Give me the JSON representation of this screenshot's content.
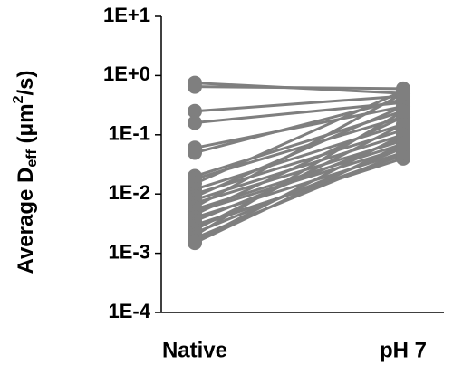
{
  "chart_data": {
    "type": "paired-line",
    "y_label_parts": [
      "Average D",
      "eff",
      " (μm",
      "2",
      "/s)"
    ],
    "categories": [
      "Native",
      "pH 7"
    ],
    "log_y": true,
    "color": "#7f7f7f",
    "ylim": [
      0.0001,
      10
    ],
    "yticks": [
      {
        "value": 0.0001,
        "label": "1E-4"
      },
      {
        "value": 0.001,
        "label": "1E-3"
      },
      {
        "value": 0.01,
        "label": "1E-2"
      },
      {
        "value": 0.1,
        "label": "1E-1"
      },
      {
        "value": 1,
        "label": "1E+0"
      },
      {
        "value": 10,
        "label": "1E+1"
      }
    ],
    "series": [
      {
        "values": [
          0.75,
          0.5
        ]
      },
      {
        "values": [
          0.65,
          0.6
        ]
      },
      {
        "values": [
          0.25,
          0.45
        ]
      },
      {
        "values": [
          0.16,
          0.35
        ]
      },
      {
        "values": [
          0.06,
          0.3
        ]
      },
      {
        "values": [
          0.05,
          0.4
        ]
      },
      {
        "values": [
          0.02,
          0.25
        ]
      },
      {
        "values": [
          0.018,
          0.2
        ]
      },
      {
        "values": [
          0.015,
          0.55
        ]
      },
      {
        "values": [
          0.012,
          0.15
        ]
      },
      {
        "values": [
          0.01,
          0.12
        ]
      },
      {
        "values": [
          0.009,
          0.3
        ]
      },
      {
        "values": [
          0.008,
          0.1
        ]
      },
      {
        "values": [
          0.007,
          0.08
        ]
      },
      {
        "values": [
          0.006,
          0.5
        ]
      },
      {
        "values": [
          0.0055,
          0.07
        ]
      },
      {
        "values": [
          0.005,
          0.06
        ]
      },
      {
        "values": [
          0.0045,
          0.2
        ]
      },
      {
        "values": [
          0.004,
          0.05
        ]
      },
      {
        "values": [
          0.0035,
          0.09
        ]
      },
      {
        "values": [
          0.003,
          0.04
        ]
      },
      {
        "values": [
          0.0028,
          0.045
        ]
      },
      {
        "values": [
          0.0025,
          0.15
        ]
      },
      {
        "values": [
          0.0022,
          0.06
        ]
      },
      {
        "values": [
          0.002,
          0.25
        ]
      },
      {
        "values": [
          0.0018,
          0.05
        ]
      },
      {
        "values": [
          0.0016,
          0.1
        ]
      },
      {
        "values": [
          0.0015,
          0.07
        ]
      }
    ]
  }
}
